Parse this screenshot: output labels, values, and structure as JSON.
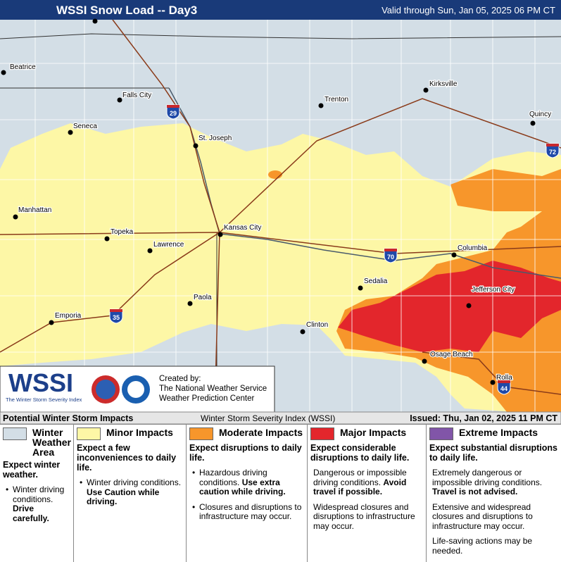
{
  "header": {
    "title": "WSSI Snow Load -- Day3",
    "valid": "Valid through Sun, Jan 05, 2025 06 PM CT"
  },
  "map": {
    "cities": [
      "Beatrice",
      "Falls City",
      "Seneca",
      "St. Joseph",
      "Trenton",
      "Kirksville",
      "Quincy",
      "Manhattan",
      "Topeka",
      "Kansas City",
      "Lawrence",
      "Paola",
      "Emporia",
      "Clinton",
      "Sedalia",
      "Columbia",
      "Jefferson City",
      "Osage Beach",
      "Rolla"
    ],
    "interstates": [
      "29",
      "70",
      "35",
      "44",
      "72"
    ]
  },
  "logo": {
    "wssi": "WSSI",
    "tagline": "The Winter Storm Severity Index",
    "credit": [
      "Created by:",
      "The National Weather Service",
      "Weather Prediction Center"
    ]
  },
  "footer": {
    "left": "Potential Winter Storm Impacts",
    "center": "Winter Storm Severity Index (WSSI)",
    "right": "Issued: Thu, Jan 02, 2025 11 PM CT"
  },
  "legend": [
    {
      "name": "Winter Weather Area",
      "color": "#d3dee6",
      "summary": "Expect winter weather.",
      "bulleted": true,
      "items": [
        {
          "text": "Winter driving conditions.",
          "bold": "Drive carefully."
        }
      ]
    },
    {
      "name": "Minor Impacts",
      "color": "#fdf7a6",
      "summary": "Expect a few inconveniences to daily life.",
      "bulleted": true,
      "items": [
        {
          "text": "Winter driving conditions.",
          "bold": "Use Caution while driving."
        }
      ]
    },
    {
      "name": "Moderate Impacts",
      "color": "#f7962b",
      "summary": "Expect disruptions to daily life.",
      "bulleted": true,
      "items": [
        {
          "text": "Hazardous driving conditions.",
          "bold": "Use extra caution while driving."
        },
        {
          "text": "Closures and disruptions to infrastructure may occur."
        }
      ]
    },
    {
      "name": "Major Impacts",
      "color": "#e3262c",
      "summary": "Expect considerable disruptions to daily life.",
      "bulleted": false,
      "items": [
        {
          "text": "Dangerous or impossible driving conditions.",
          "bold": "Avoid travel if possible."
        },
        {
          "text": "Widespread closures and disruptions to infrastructure may occur."
        }
      ]
    },
    {
      "name": "Extreme Impacts",
      "color": "#8155a8",
      "summary": "Expect substantial disruptions to daily life.",
      "bulleted": false,
      "items": [
        {
          "text": "Extremely dangerous or impossible driving conditions.",
          "bold": "Travel is not advised."
        },
        {
          "text": "Extensive and widespread closures and disruptions to infrastructure may occur."
        },
        {
          "text": "Life-saving actions may be needed."
        }
      ]
    }
  ]
}
